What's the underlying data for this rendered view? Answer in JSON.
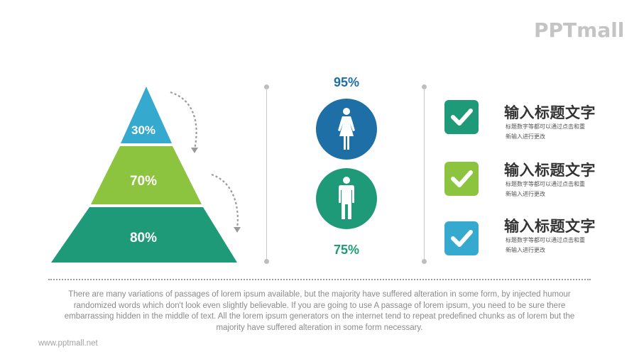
{
  "brand": {
    "logo_text": "PPTmall",
    "url": "www.pptmall.net"
  },
  "pyramid": {
    "levels": [
      {
        "label": "30%",
        "color": "#36a9cf"
      },
      {
        "label": "70%",
        "color": "#8cc43f"
      },
      {
        "label": "80%",
        "color": "#1f9a78"
      }
    ]
  },
  "gender": {
    "female": {
      "percent": "95%",
      "color": "#1d6fa5"
    },
    "male": {
      "percent": "75%",
      "color": "#1f9a78"
    }
  },
  "items": [
    {
      "title": "输入标题文字",
      "desc_line1": "标题数字等都可以通过点击和重",
      "desc_line2": "新输入进行更改",
      "check_color": "#1f9a78"
    },
    {
      "title": "输入标题文字",
      "desc_line1": "标题数字等都可以通过点击和重",
      "desc_line2": "新输入进行更改",
      "check_color": "#8cc43f"
    },
    {
      "title": "输入标题文字",
      "desc_line1": "标题数字等都可以通过点击和重",
      "desc_line2": "新输入进行更改",
      "check_color": "#36a9cf"
    }
  ],
  "paragraph": "There are many variations of passages of lorem ipsum available, but the majority have suffered alteration in some form, by injected humour randomized words which don't look even slightly believable. If you are going to use A passage of lorem ipsum, you need to be sure there embarrassing hidden in the middle of text. All the lorem ipsum generators on the internet tend to repeat predefined chunks as of lorem but the majority have suffered alteration in some form necessary."
}
